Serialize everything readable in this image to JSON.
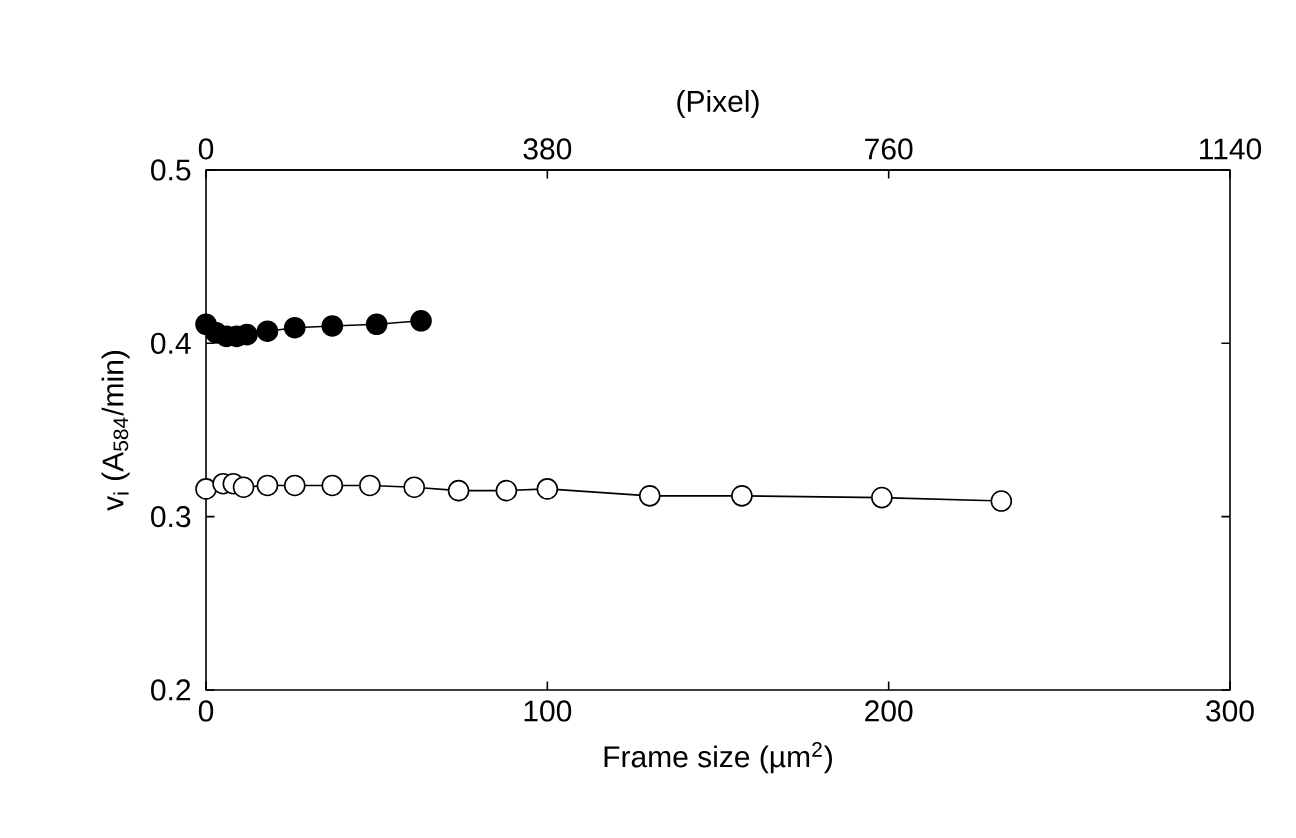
{
  "chart_data": {
    "type": "line",
    "xlabel": "Frame size (µm$^{2}$)",
    "ylabel": "v$_{i}$ (A$_{584}$/min)",
    "x2label": "(Pixel)",
    "xlim": [
      0,
      300
    ],
    "xticks": [
      0,
      100,
      200,
      300
    ],
    "ylim": [
      0.2,
      0.5
    ],
    "yticks": [
      0.2,
      0.3,
      0.4,
      0.5
    ],
    "x2lim": [
      0,
      1140
    ],
    "x2ticks": [
      0,
      380,
      760,
      1140
    ],
    "marker": "circle",
    "line_style": "solid",
    "grid": false,
    "series": [
      {
        "color": "#000000",
        "x": [
          0,
          3,
          6,
          9,
          12,
          18,
          26,
          37,
          50,
          63
        ],
        "values": [
          0.411,
          0.406,
          0.404,
          0.404,
          0.405,
          0.407,
          0.409,
          0.41,
          0.411,
          0.413
        ]
      },
      {
        "color": "#000000",
        "x": [
          0,
          5,
          8,
          11,
          18,
          26,
          37,
          48,
          61,
          74,
          88,
          100,
          130,
          157,
          198,
          233
        ],
        "values": [
          0.316,
          0.319,
          0.319,
          0.317,
          0.318,
          0.318,
          0.318,
          0.318,
          0.317,
          0.315,
          0.315,
          0.316,
          0.312,
          0.312,
          0.311,
          0.309
        ]
      }
    ]
  }
}
